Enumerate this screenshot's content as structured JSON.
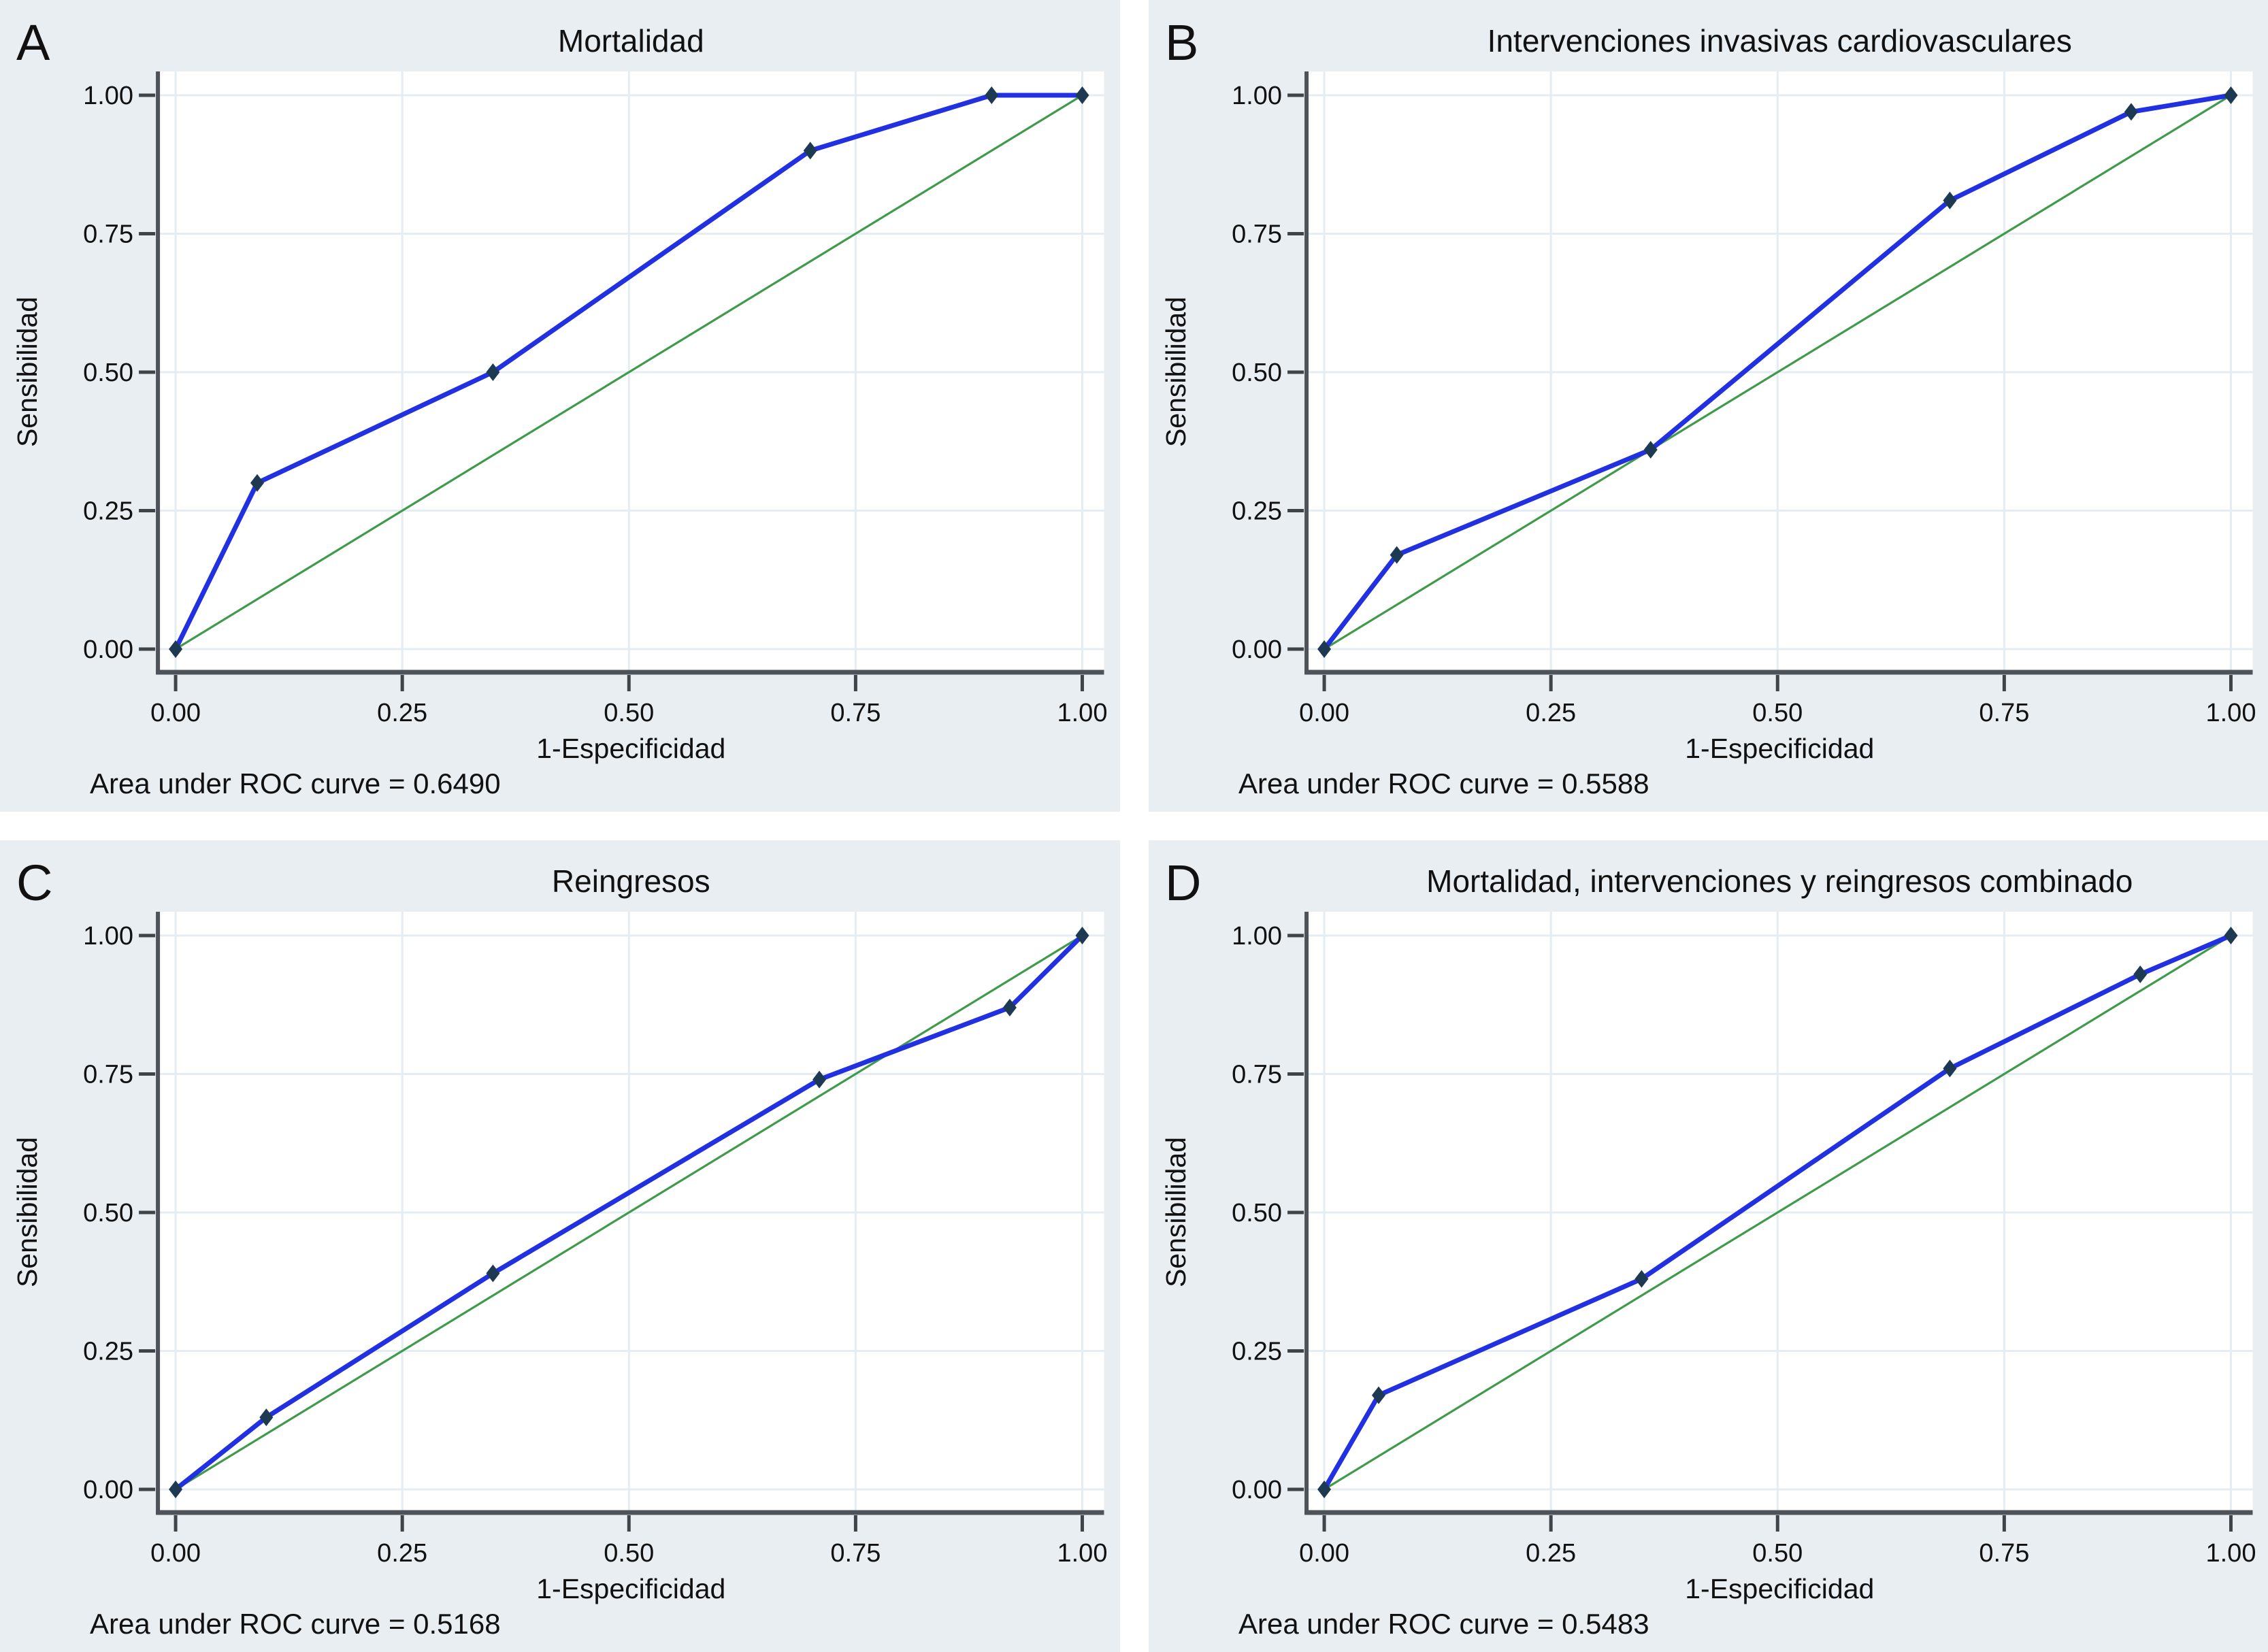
{
  "figure": {
    "description": "Four-panel ROC curve figure (Stata-style)",
    "panel_background": "#e8eef1",
    "plot_background": "#ffffff"
  },
  "colors": {
    "roc_line": "#2130e0",
    "marker": "#1e3a52",
    "reference_line": "#3f9a4c",
    "grid_line": "#e3edf3",
    "spine": "#4d5359",
    "tick": "#3f444a",
    "title_navy": "#1b275c",
    "title_black": "#131313",
    "text": "#111111",
    "panel_bg": "#e8eef1",
    "plot_bg": "#ffffff"
  },
  "axes_common": {
    "x_label": "1-Especificidad",
    "y_label": "Sensibilidad",
    "tick_values": [
      0,
      0.25,
      0.5,
      0.75,
      1
    ],
    "tick_labels": [
      "0.00",
      "0.25",
      "0.50",
      "0.75",
      "1.00"
    ]
  },
  "chart_data": [
    {
      "type": "line",
      "panel_letter": "A",
      "title": "Mortalidad",
      "title_color": "#1b275c",
      "xlabel": "1-Especificidad",
      "ylabel": "Sensibilidad",
      "xlim": [
        0,
        1
      ],
      "ylim": [
        0,
        1
      ],
      "grid": true,
      "x_tick_labels": [
        "0.00",
        "0.25",
        "0.50",
        "0.75",
        "1.00"
      ],
      "y_tick_labels": [
        "0.00",
        "0.25",
        "0.50",
        "0.75",
        "1.00"
      ],
      "tick_values": [
        0,
        0.25,
        0.5,
        0.75,
        1
      ],
      "series": [
        {
          "name": "ROC",
          "x": [
            0,
            0.09,
            0.35,
            0.7,
            0.9,
            1.0
          ],
          "y": [
            0,
            0.3,
            0.5,
            0.9,
            1.0,
            1.0
          ]
        },
        {
          "name": "Reference",
          "x": [
            0,
            1
          ],
          "y": [
            0,
            1
          ]
        }
      ],
      "auc": 0.649,
      "annotation": "Area under ROC curve = 0.6490"
    },
    {
      "type": "line",
      "panel_letter": "B",
      "title": "Intervenciones invasivas cardiovasculares",
      "title_color": "#131313",
      "xlabel": "1-Especificidad",
      "ylabel": "Sensibilidad",
      "xlim": [
        0,
        1
      ],
      "ylim": [
        0,
        1
      ],
      "grid": true,
      "x_tick_labels": [
        "0.00",
        "0.25",
        "0.50",
        "0.75",
        "1.00"
      ],
      "y_tick_labels": [
        "0.00",
        "0.25",
        "0.50",
        "0.75",
        "1.00"
      ],
      "tick_values": [
        0,
        0.25,
        0.5,
        0.75,
        1
      ],
      "series": [
        {
          "name": "ROC",
          "x": [
            0,
            0.08,
            0.36,
            0.69,
            0.89,
            1.0
          ],
          "y": [
            0,
            0.17,
            0.36,
            0.81,
            0.97,
            1.0
          ]
        },
        {
          "name": "Reference",
          "x": [
            0,
            1
          ],
          "y": [
            0,
            1
          ]
        }
      ],
      "auc": 0.5588,
      "annotation": "Area under ROC curve = 0.5588"
    },
    {
      "type": "line",
      "panel_letter": "C",
      "title": "Reingresos",
      "title_color": "#1b275c",
      "xlabel": "1-Especificidad",
      "ylabel": "Sensibilidad",
      "xlim": [
        0,
        1
      ],
      "ylim": [
        0,
        1
      ],
      "grid": true,
      "x_tick_labels": [
        "0.00",
        "0.25",
        "0.50",
        "0.75",
        "1.00"
      ],
      "y_tick_labels": [
        "0.00",
        "0.25",
        "0.50",
        "0.75",
        "1.00"
      ],
      "tick_values": [
        0,
        0.25,
        0.5,
        0.75,
        1
      ],
      "series": [
        {
          "name": "ROC",
          "x": [
            0,
            0.1,
            0.35,
            0.71,
            0.92,
            1.0
          ],
          "y": [
            0,
            0.13,
            0.39,
            0.74,
            0.87,
            1.0
          ]
        },
        {
          "name": "Reference",
          "x": [
            0,
            1
          ],
          "y": [
            0,
            1
          ]
        }
      ],
      "auc": 0.5168,
      "annotation": "Area under ROC curve = 0.5168"
    },
    {
      "type": "line",
      "panel_letter": "D",
      "title": "Mortalidad, intervenciones y reingresos combinado",
      "title_color": "#131313",
      "xlabel": "1-Especificidad",
      "ylabel": "Sensibilidad",
      "xlim": [
        0,
        1
      ],
      "ylim": [
        0,
        1
      ],
      "grid": true,
      "x_tick_labels": [
        "0.00",
        "0.25",
        "0.50",
        "0.75",
        "1.00"
      ],
      "y_tick_labels": [
        "0.00",
        "0.25",
        "0.50",
        "0.75",
        "1.00"
      ],
      "tick_values": [
        0,
        0.25,
        0.5,
        0.75,
        1
      ],
      "series": [
        {
          "name": "ROC",
          "x": [
            0,
            0.06,
            0.35,
            0.69,
            0.9,
            1.0
          ],
          "y": [
            0,
            0.17,
            0.38,
            0.76,
            0.93,
            1.0
          ]
        },
        {
          "name": "Reference",
          "x": [
            0,
            1
          ],
          "y": [
            0,
            1
          ]
        }
      ],
      "auc": 0.5483,
      "annotation": "Area under ROC curve = 0.5483"
    }
  ]
}
